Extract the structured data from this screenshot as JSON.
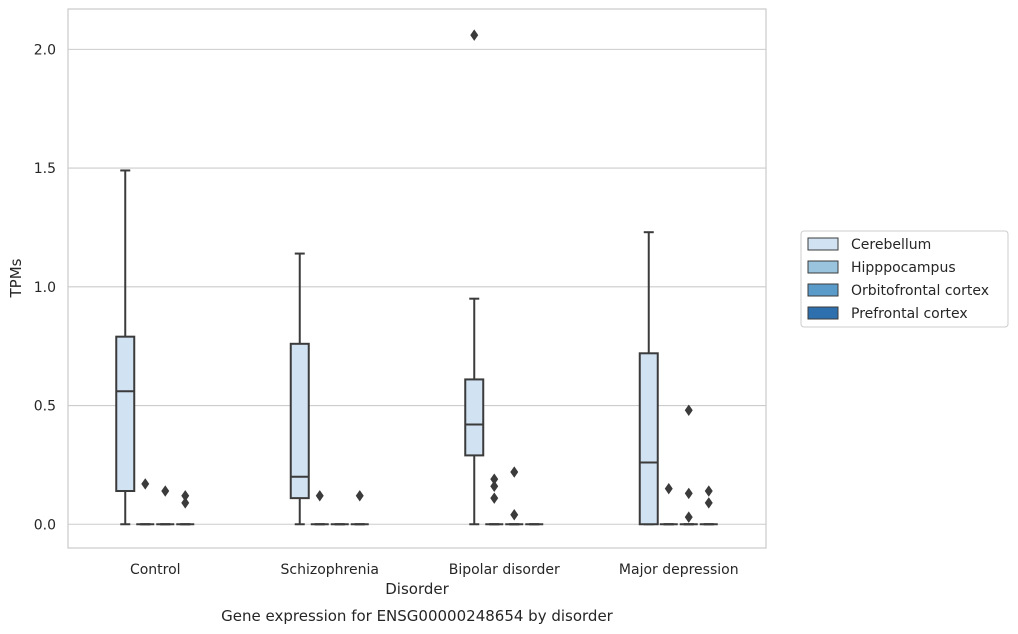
{
  "chart_data": {
    "type": "box",
    "title": "",
    "caption": "Gene expression for ENSG00000248654 by disorder",
    "xlabel": "Disorder",
    "ylabel": "TPMs",
    "ylim": [
      -0.1,
      2.17
    ],
    "yticks": [
      "0.0",
      "0.5",
      "1.0",
      "1.5",
      "2.0"
    ],
    "grid": "horizontal",
    "legend_position": "right",
    "categories": [
      "Control",
      "Schizophrenia",
      "Bipolar disorder",
      "Major depression"
    ],
    "series": [
      {
        "name": "Cerebellum",
        "color": "#d1e2f2",
        "boxes": [
          {
            "min": 0.0,
            "q1": 0.14,
            "median": 0.56,
            "q3": 0.79,
            "max": 1.49,
            "outliers": []
          },
          {
            "min": 0.0,
            "q1": 0.11,
            "median": 0.2,
            "q3": 0.76,
            "max": 1.14,
            "outliers": []
          },
          {
            "min": 0.0,
            "q1": 0.29,
            "median": 0.42,
            "q3": 0.61,
            "max": 0.95,
            "outliers": [
              2.06
            ]
          },
          {
            "min": 0.0,
            "q1": 0.0,
            "median": 0.26,
            "q3": 0.72,
            "max": 1.23,
            "outliers": []
          }
        ]
      },
      {
        "name": "Hipppocampus",
        "color": "#9ac3de",
        "boxes": [
          {
            "min": 0.0,
            "q1": 0.0,
            "median": 0.0,
            "q3": 0.0,
            "max": 0.0,
            "outliers": [
              0.17
            ]
          },
          {
            "min": 0.0,
            "q1": 0.0,
            "median": 0.0,
            "q3": 0.0,
            "max": 0.0,
            "outliers": [
              0.12
            ]
          },
          {
            "min": 0.0,
            "q1": 0.0,
            "median": 0.0,
            "q3": 0.0,
            "max": 0.0,
            "outliers": [
              0.11,
              0.16,
              0.19
            ]
          },
          {
            "min": 0.0,
            "q1": 0.0,
            "median": 0.0,
            "q3": 0.0,
            "max": 0.0,
            "outliers": [
              0.15
            ]
          }
        ]
      },
      {
        "name": "Orbitofrontal cortex",
        "color": "#5a9bc9",
        "boxes": [
          {
            "min": 0.0,
            "q1": 0.0,
            "median": 0.0,
            "q3": 0.0,
            "max": 0.0,
            "outliers": [
              0.14
            ]
          },
          {
            "min": 0.0,
            "q1": 0.0,
            "median": 0.0,
            "q3": 0.0,
            "max": 0.0,
            "outliers": []
          },
          {
            "min": 0.0,
            "q1": 0.0,
            "median": 0.0,
            "q3": 0.0,
            "max": 0.0,
            "outliers": [
              0.04,
              0.22
            ]
          },
          {
            "min": 0.0,
            "q1": 0.0,
            "median": 0.0,
            "q3": 0.0,
            "max": 0.0,
            "outliers": [
              0.03,
              0.13,
              0.48
            ]
          }
        ]
      },
      {
        "name": "Prefrontal cortex",
        "color": "#2e6fae",
        "boxes": [
          {
            "min": 0.0,
            "q1": 0.0,
            "median": 0.0,
            "q3": 0.0,
            "max": 0.0,
            "outliers": [
              0.09,
              0.12
            ]
          },
          {
            "min": 0.0,
            "q1": 0.0,
            "median": 0.0,
            "q3": 0.0,
            "max": 0.0,
            "outliers": [
              0.12
            ]
          },
          {
            "min": 0.0,
            "q1": 0.0,
            "median": 0.0,
            "q3": 0.0,
            "max": 0.0,
            "outliers": []
          },
          {
            "min": 0.0,
            "q1": 0.0,
            "median": 0.0,
            "q3": 0.0,
            "max": 0.0,
            "outliers": [
              0.09,
              0.14
            ]
          }
        ]
      }
    ]
  }
}
